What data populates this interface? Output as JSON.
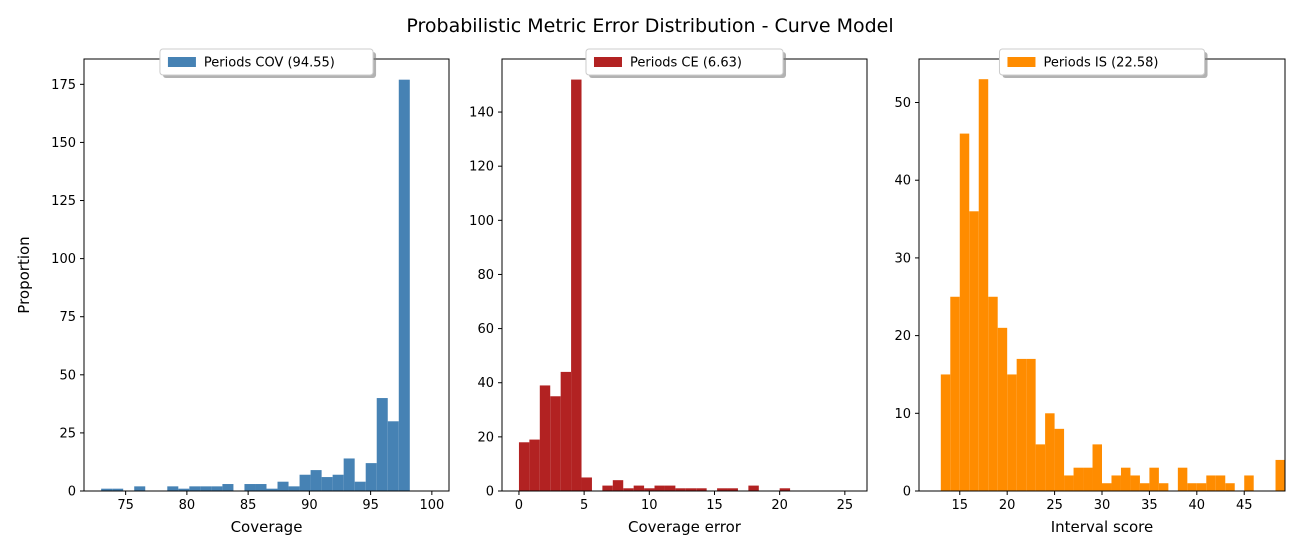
{
  "figure": {
    "title": "Probabilistic Metric Error Distribution - Curve Model"
  },
  "chart_data": [
    {
      "type": "histogram",
      "xlabel": "Coverage",
      "ylabel": "Proportion",
      "legend": {
        "label": "Periods COV (94.55)",
        "placement": "upper-center"
      },
      "color": "#4682b4",
      "xlim": [
        71.6,
        101.4
      ],
      "ylim": [
        0,
        185.9
      ],
      "xticks": [
        75,
        80,
        85,
        90,
        95,
        100
      ],
      "yticks": [
        0,
        25,
        50,
        75,
        100,
        125,
        150,
        175
      ],
      "bins": [
        {
          "x0": 73.0,
          "x1": 73.9,
          "count": 1
        },
        {
          "x0": 73.9,
          "x1": 74.8,
          "count": 1
        },
        {
          "x0": 75.7,
          "x1": 76.6,
          "count": 2
        },
        {
          "x0": 78.4,
          "x1": 79.3,
          "count": 2
        },
        {
          "x0": 79.3,
          "x1": 80.2,
          "count": 1
        },
        {
          "x0": 80.2,
          "x1": 81.1,
          "count": 2
        },
        {
          "x0": 81.1,
          "x1": 82.0,
          "count": 2
        },
        {
          "x0": 82.0,
          "x1": 82.9,
          "count": 2
        },
        {
          "x0": 82.9,
          "x1": 83.8,
          "count": 3
        },
        {
          "x0": 84.7,
          "x1": 85.6,
          "count": 3
        },
        {
          "x0": 85.6,
          "x1": 86.5,
          "count": 3
        },
        {
          "x0": 86.5,
          "x1": 87.4,
          "count": 1
        },
        {
          "x0": 87.4,
          "x1": 88.3,
          "count": 4
        },
        {
          "x0": 88.3,
          "x1": 89.2,
          "count": 2
        },
        {
          "x0": 89.2,
          "x1": 90.1,
          "count": 7
        },
        {
          "x0": 90.1,
          "x1": 91.0,
          "count": 9
        },
        {
          "x0": 91.0,
          "x1": 91.9,
          "count": 6
        },
        {
          "x0": 91.9,
          "x1": 92.8,
          "count": 7
        },
        {
          "x0": 92.8,
          "x1": 93.7,
          "count": 14
        },
        {
          "x0": 93.7,
          "x1": 94.6,
          "count": 4
        },
        {
          "x0": 94.6,
          "x1": 95.5,
          "count": 12
        },
        {
          "x0": 95.5,
          "x1": 96.4,
          "count": 40
        },
        {
          "x0": 96.4,
          "x1": 97.3,
          "count": 30
        },
        {
          "x0": 97.3,
          "x1": 98.2,
          "count": 177
        }
      ]
    },
    {
      "type": "histogram",
      "xlabel": "Coverage error",
      "ylabel": "",
      "legend": {
        "label": "Periods CE (6.63)",
        "placement": "upper-center"
      },
      "color": "#b22222",
      "xlim": [
        -1.3,
        26.7
      ],
      "ylim": [
        0,
        159.6
      ],
      "xticks": [
        0,
        5,
        10,
        15,
        20,
        25
      ],
      "yticks": [
        0,
        20,
        40,
        60,
        80,
        100,
        120,
        140
      ],
      "bins": [
        {
          "x0": 0.0,
          "x1": 0.8,
          "count": 18
        },
        {
          "x0": 0.8,
          "x1": 1.6,
          "count": 19
        },
        {
          "x0": 1.6,
          "x1": 2.4,
          "count": 39
        },
        {
          "x0": 2.4,
          "x1": 3.2,
          "count": 35
        },
        {
          "x0": 3.2,
          "x1": 4.0,
          "count": 44
        },
        {
          "x0": 4.0,
          "x1": 4.8,
          "count": 152
        },
        {
          "x0": 4.8,
          "x1": 5.6,
          "count": 5
        },
        {
          "x0": 5.6,
          "x1": 6.4,
          "count": 0
        },
        {
          "x0": 6.4,
          "x1": 7.2,
          "count": 2
        },
        {
          "x0": 7.2,
          "x1": 8.0,
          "count": 4
        },
        {
          "x0": 8.0,
          "x1": 8.8,
          "count": 1
        },
        {
          "x0": 8.8,
          "x1": 9.6,
          "count": 2
        },
        {
          "x0": 9.6,
          "x1": 10.4,
          "count": 1
        },
        {
          "x0": 10.4,
          "x1": 11.2,
          "count": 2
        },
        {
          "x0": 11.2,
          "x1": 12.0,
          "count": 2
        },
        {
          "x0": 12.0,
          "x1": 12.8,
          "count": 1
        },
        {
          "x0": 12.8,
          "x1": 13.6,
          "count": 1
        },
        {
          "x0": 13.6,
          "x1": 14.4,
          "count": 1
        },
        {
          "x0": 15.2,
          "x1": 16.0,
          "count": 1
        },
        {
          "x0": 16.0,
          "x1": 16.8,
          "count": 1
        },
        {
          "x0": 17.6,
          "x1": 18.4,
          "count": 2
        },
        {
          "x0": 20.0,
          "x1": 20.8,
          "count": 1
        }
      ]
    },
    {
      "type": "histogram",
      "xlabel": "Interval score",
      "ylabel": "",
      "legend": {
        "label": "Periods IS (22.58)",
        "placement": "upper-center"
      },
      "color": "#ff8c00",
      "xlim": [
        10.7,
        49.3
      ],
      "ylim": [
        0,
        55.6
      ],
      "xticks": [
        15,
        20,
        25,
        30,
        35,
        40,
        45
      ],
      "yticks": [
        0,
        10,
        20,
        30,
        40,
        50
      ],
      "bins": [
        {
          "x0": 13.0,
          "x1": 14.0,
          "count": 15
        },
        {
          "x0": 14.0,
          "x1": 15.0,
          "count": 25
        },
        {
          "x0": 15.0,
          "x1": 16.0,
          "count": 46
        },
        {
          "x0": 16.0,
          "x1": 17.0,
          "count": 36
        },
        {
          "x0": 17.0,
          "x1": 18.0,
          "count": 53
        },
        {
          "x0": 18.0,
          "x1": 19.0,
          "count": 25
        },
        {
          "x0": 19.0,
          "x1": 20.0,
          "count": 21
        },
        {
          "x0": 20.0,
          "x1": 21.0,
          "count": 15
        },
        {
          "x0": 21.0,
          "x1": 22.0,
          "count": 17
        },
        {
          "x0": 22.0,
          "x1": 23.0,
          "count": 17
        },
        {
          "x0": 23.0,
          "x1": 24.0,
          "count": 6
        },
        {
          "x0": 24.0,
          "x1": 25.0,
          "count": 10
        },
        {
          "x0": 25.0,
          "x1": 26.0,
          "count": 8
        },
        {
          "x0": 26.0,
          "x1": 27.0,
          "count": 2
        },
        {
          "x0": 27.0,
          "x1": 28.0,
          "count": 3
        },
        {
          "x0": 28.0,
          "x1": 29.0,
          "count": 3
        },
        {
          "x0": 29.0,
          "x1": 30.0,
          "count": 6
        },
        {
          "x0": 30.0,
          "x1": 31.0,
          "count": 1
        },
        {
          "x0": 31.0,
          "x1": 32.0,
          "count": 2
        },
        {
          "x0": 32.0,
          "x1": 33.0,
          "count": 3
        },
        {
          "x0": 33.0,
          "x1": 34.0,
          "count": 2
        },
        {
          "x0": 34.0,
          "x1": 35.0,
          "count": 1
        },
        {
          "x0": 35.0,
          "x1": 36.0,
          "count": 3
        },
        {
          "x0": 36.0,
          "x1": 37.0,
          "count": 1
        },
        {
          "x0": 38.0,
          "x1": 39.0,
          "count": 3
        },
        {
          "x0": 39.0,
          "x1": 40.0,
          "count": 1
        },
        {
          "x0": 40.0,
          "x1": 41.0,
          "count": 1
        },
        {
          "x0": 41.0,
          "x1": 42.0,
          "count": 2
        },
        {
          "x0": 42.0,
          "x1": 43.0,
          "count": 2
        },
        {
          "x0": 43.0,
          "x1": 44.0,
          "count": 1
        },
        {
          "x0": 45.0,
          "x1": 46.0,
          "count": 2
        },
        {
          "x0": 48.3,
          "x1": 49.3,
          "count": 4
        }
      ]
    }
  ]
}
